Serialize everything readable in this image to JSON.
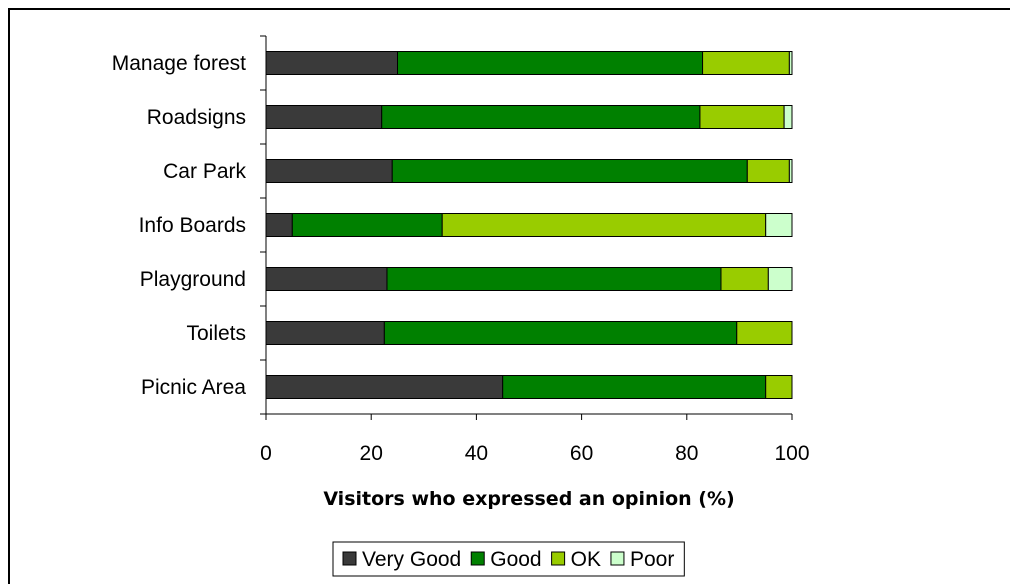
{
  "chart_data": {
    "type": "bar",
    "orientation": "horizontal",
    "stacked": true,
    "categories": [
      "Manage forest",
      "Roadsigns",
      "Car Park",
      "Info Boards",
      "Playground",
      "Toilets",
      "Picnic Area"
    ],
    "series": [
      {
        "name": "Very Good",
        "color": "#3a3a3a",
        "values": [
          25,
          22,
          24,
          5,
          23,
          22.5,
          45
        ]
      },
      {
        "name": "Good",
        "color": "#008000",
        "values": [
          58,
          60.5,
          67.5,
          28.5,
          63.5,
          67,
          50
        ]
      },
      {
        "name": "OK",
        "color": "#99cc00",
        "values": [
          16.5,
          16,
          8,
          61.5,
          9,
          10.5,
          5
        ]
      },
      {
        "name": "Poor",
        "color": "#ccffcc",
        "values": [
          0.5,
          1.5,
          0.5,
          5,
          4.5,
          0,
          0
        ]
      }
    ],
    "xlabel": "Visitors who expressed an opinion (%)",
    "xlim": [
      0,
      100
    ],
    "xticks": [
      "0",
      "20",
      "40",
      "60",
      "80",
      "100"
    ],
    "legend_position": "bottom",
    "grid": false
  }
}
